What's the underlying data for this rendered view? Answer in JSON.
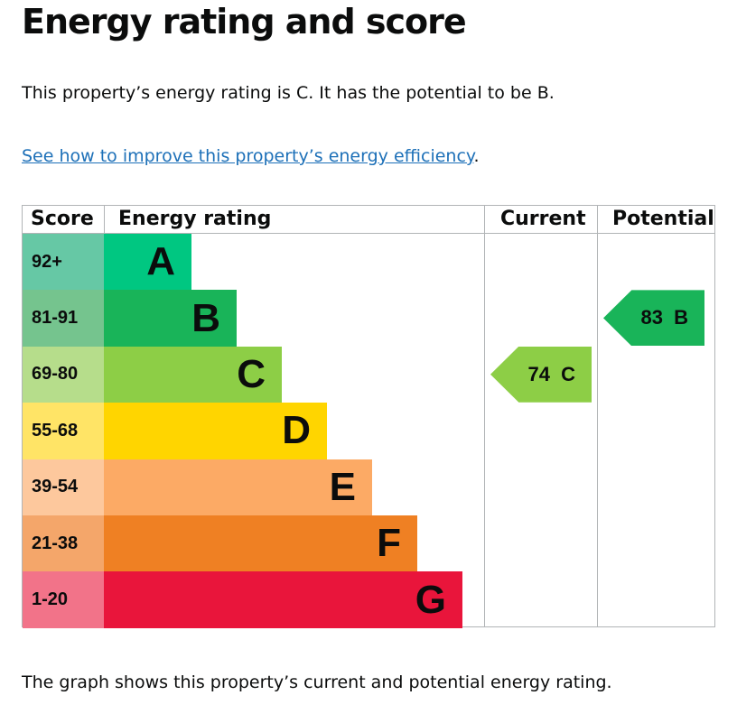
{
  "title": "Energy rating and score",
  "summary": "This property’s energy rating is C. It has the potential to be B.",
  "link": "See how to improve this property’s energy efficiency",
  "link_suffix": ".",
  "chart": {
    "headers": {
      "score": "Score",
      "rating": "Energy rating",
      "current": "Current",
      "potential": "Potential"
    },
    "bands": [
      {
        "score": "92+",
        "letter": "A",
        "color": "#00c781",
        "light": "#66c8a5"
      },
      {
        "score": "81-91",
        "letter": "B",
        "color": "#19b459",
        "light": "#75c48e"
      },
      {
        "score": "69-80",
        "letter": "C",
        "color": "#8dce46",
        "light": "#b6dd8b"
      },
      {
        "score": "55-68",
        "letter": "D",
        "color": "#ffd500",
        "light": "#ffe466"
      },
      {
        "score": "39-54",
        "letter": "E",
        "color": "#fcaa65",
        "light": "#fdc89d"
      },
      {
        "score": "21-38",
        "letter": "F",
        "color": "#ef8023",
        "light": "#f4a66a"
      },
      {
        "score": "1-20",
        "letter": "G",
        "color": "#e9153b",
        "light": "#f27389"
      }
    ],
    "current": {
      "label": "74 C",
      "band": "C",
      "score": 74
    },
    "potential": {
      "label": "83 B",
      "band": "B",
      "score": 83
    }
  },
  "footer": "The graph shows this property’s current and potential energy rating."
}
